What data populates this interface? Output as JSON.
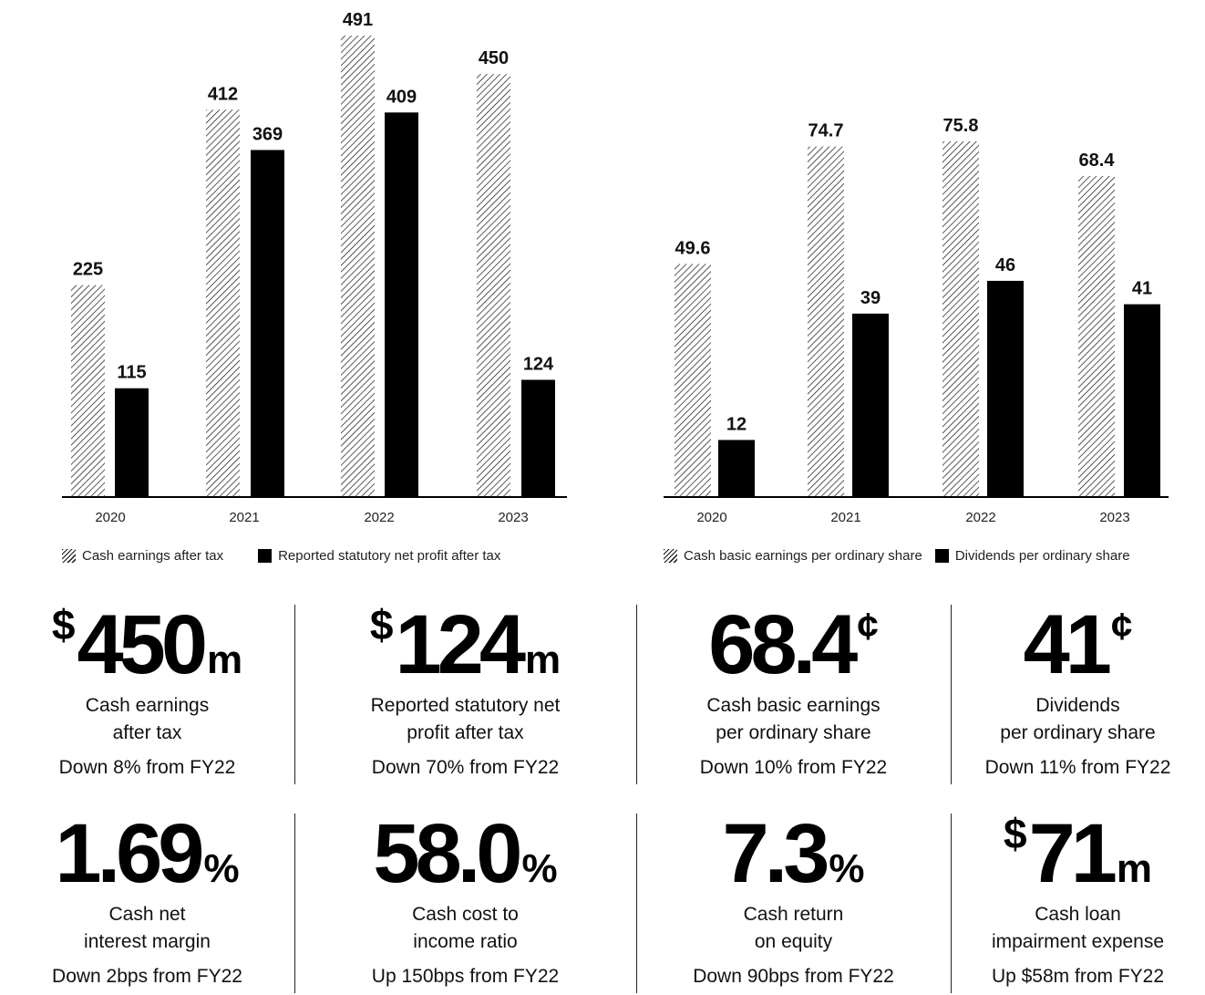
{
  "colors": {
    "hatch": "#111111",
    "solid": "#000000",
    "axis": "#000000",
    "text": "#111111"
  },
  "chart_data": [
    {
      "type": "bar",
      "categories": [
        "2020",
        "2021",
        "2022",
        "2023"
      ],
      "series": [
        {
          "name": "Cash earnings after tax",
          "style": "hatched",
          "values": [
            225,
            412,
            491,
            450
          ],
          "labels": [
            "225",
            "412",
            "491",
            "450"
          ]
        },
        {
          "name": "Reported statutory net profit after tax",
          "style": "solid",
          "values": [
            115,
            369,
            409,
            124
          ],
          "labels": [
            "115",
            "369",
            "409",
            "124"
          ]
        }
      ],
      "ylim": [
        0,
        491
      ],
      "grid": false,
      "legend": "bottom"
    },
    {
      "type": "bar",
      "categories": [
        "2020",
        "2021",
        "2022",
        "2023"
      ],
      "series": [
        {
          "name": "Cash basic earnings per ordinary share",
          "style": "hatched",
          "values": [
            49.6,
            74.7,
            75.8,
            68.4
          ],
          "labels": [
            "49.6",
            "74.7",
            "75.8",
            "68.4"
          ]
        },
        {
          "name": "Dividends per ordinary share",
          "style": "solid",
          "values": [
            12,
            39,
            46,
            41
          ],
          "labels": [
            "12",
            "39",
            "46",
            "41"
          ]
        }
      ],
      "ylim": [
        0,
        75.8
      ],
      "grid": false,
      "legend": "bottom"
    }
  ],
  "kpis": [
    {
      "prefix": "$",
      "value": "450",
      "sup": "",
      "suffix": "m",
      "line1": "Cash earnings",
      "line2": "after tax",
      "change": "Down 8% from FY22"
    },
    {
      "prefix": "$",
      "value": "124",
      "sup": "",
      "suffix": "m",
      "line1": "Reported statutory net",
      "line2": "profit after tax",
      "change": "Down 70% from FY22"
    },
    {
      "prefix": "",
      "value": "68.4",
      "sup": "¢",
      "suffix": "",
      "line1": "Cash basic earnings",
      "line2": "per ordinary share",
      "change": "Down 10% from FY22"
    },
    {
      "prefix": "",
      "value": "41",
      "sup": "¢",
      "suffix": "",
      "line1": "Dividends",
      "line2": "per ordinary share",
      "change": "Down 11% from FY22"
    },
    {
      "prefix": "",
      "value": "1.69",
      "sup": "",
      "suffix": "%",
      "line1": "Cash net",
      "line2": "interest margin",
      "change": "Down 2bps from FY22"
    },
    {
      "prefix": "",
      "value": "58.0",
      "sup": "",
      "suffix": "%",
      "line1": "Cash cost to",
      "line2": "income ratio",
      "change": "Up 150bps from FY22"
    },
    {
      "prefix": "",
      "value": "7.3",
      "sup": "",
      "suffix": "%",
      "line1": "Cash return",
      "line2": "on equity",
      "change": "Down 90bps from FY22"
    },
    {
      "prefix": "$",
      "value": "71",
      "sup": "",
      "suffix": "m",
      "line1": "Cash loan",
      "line2": "impairment expense",
      "change": "Up $58m from FY22"
    }
  ]
}
